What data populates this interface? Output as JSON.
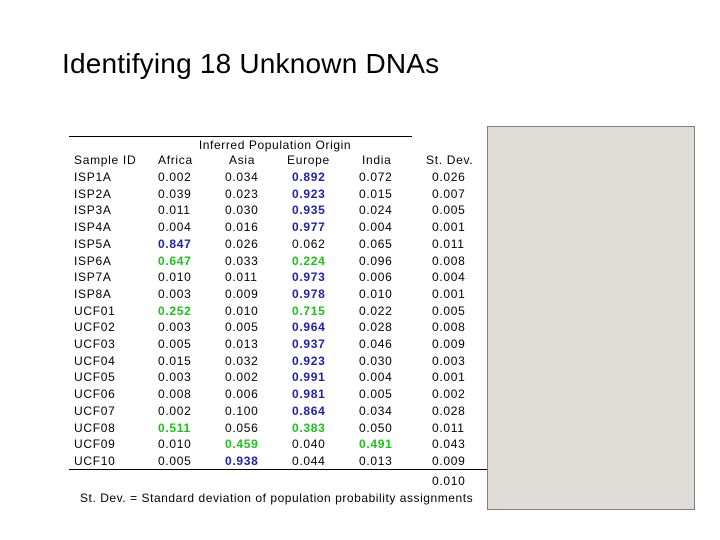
{
  "title": "Identifying 18 Unknown DNAs",
  "table": {
    "group_header": "Inferred Population Origin",
    "columns": {
      "id": "Sample ID",
      "africa": "Africa",
      "asia": "Asia",
      "europe": "Europe",
      "india": "India",
      "sd": "St. Dev."
    },
    "highlight_colors": {
      "blue": "#1f1fa8",
      "green": "#1fbf1f"
    },
    "rows": [
      {
        "id": "ISP1A",
        "africa": "0.002",
        "asia": "0.034",
        "europe": "0.892",
        "india": "0.072",
        "sd": "0.026",
        "hl": {
          "europe": "blue"
        }
      },
      {
        "id": "ISP2A",
        "africa": "0.039",
        "asia": "0.023",
        "europe": "0.923",
        "india": "0.015",
        "sd": "0.007",
        "hl": {
          "europe": "blue"
        }
      },
      {
        "id": "ISP3A",
        "africa": "0.011",
        "asia": "0.030",
        "europe": "0.935",
        "india": "0.024",
        "sd": "0.005",
        "hl": {
          "europe": "blue"
        }
      },
      {
        "id": "ISP4A",
        "africa": "0.004",
        "asia": "0.016",
        "europe": "0.977",
        "india": "0.004",
        "sd": "0.001",
        "hl": {
          "europe": "blue"
        }
      },
      {
        "id": "ISP5A",
        "africa": "0.847",
        "asia": "0.026",
        "europe": "0.062",
        "india": "0.065",
        "sd": "0.011",
        "hl": {
          "africa": "blue"
        }
      },
      {
        "id": "ISP6A",
        "africa": "0.647",
        "asia": "0.033",
        "europe": "0.224",
        "india": "0.096",
        "sd": "0.008",
        "hl": {
          "africa": "green",
          "europe": "green"
        }
      },
      {
        "id": "ISP7A",
        "africa": "0.010",
        "asia": "0.011",
        "europe": "0.973",
        "india": "0.006",
        "sd": "0.004",
        "hl": {
          "europe": "blue"
        }
      },
      {
        "id": "ISP8A",
        "africa": "0.003",
        "asia": "0.009",
        "europe": "0.978",
        "india": "0.010",
        "sd": "0.001",
        "hl": {
          "europe": "blue"
        }
      },
      {
        "id": "UCF01",
        "africa": "0.252",
        "asia": "0.010",
        "europe": "0.715",
        "india": "0.022",
        "sd": "0.005",
        "hl": {
          "africa": "green",
          "europe": "green"
        }
      },
      {
        "id": "UCF02",
        "africa": "0.003",
        "asia": "0.005",
        "europe": "0.964",
        "india": "0.028",
        "sd": "0.008",
        "hl": {
          "europe": "blue"
        }
      },
      {
        "id": "UCF03",
        "africa": "0.005",
        "asia": "0.013",
        "europe": "0.937",
        "india": "0.046",
        "sd": "0.009",
        "hl": {
          "europe": "blue"
        }
      },
      {
        "id": "UCF04",
        "africa": "0.015",
        "asia": "0.032",
        "europe": "0.923",
        "india": "0.030",
        "sd": "0.003",
        "hl": {
          "europe": "blue"
        }
      },
      {
        "id": "UCF05",
        "africa": "0.003",
        "asia": "0.002",
        "europe": "0.991",
        "india": "0.004",
        "sd": "0.001",
        "hl": {
          "europe": "blue"
        }
      },
      {
        "id": "UCF06",
        "africa": "0.008",
        "asia": "0.006",
        "europe": "0.981",
        "india": "0.005",
        "sd": "0.002",
        "hl": {
          "europe": "blue"
        }
      },
      {
        "id": "UCF07",
        "africa": "0.002",
        "asia": "0.100",
        "europe": "0.864",
        "india": "0.034",
        "sd": "0.028",
        "hl": {
          "europe": "blue"
        }
      },
      {
        "id": "UCF08",
        "africa": "0.511",
        "asia": "0.056",
        "europe": "0.383",
        "india": "0.050",
        "sd": "0.011",
        "hl": {
          "africa": "green",
          "europe": "green"
        }
      },
      {
        "id": "UCF09",
        "africa": "0.010",
        "asia": "0.459",
        "europe": "0.040",
        "india": "0.491",
        "sd": "0.043",
        "hl": {
          "asia": "green",
          "india": "green"
        }
      },
      {
        "id": "UCF10",
        "africa": "0.005",
        "asia": "0.938",
        "europe": "0.044",
        "india": "0.013",
        "sd": "0.009",
        "hl": {
          "asia": "blue"
        }
      }
    ],
    "overall_sd": "0.010"
  },
  "footnote": "St. Dev. = Standard deviation of population probability assignments",
  "panel_color": "#e0ddd8"
}
